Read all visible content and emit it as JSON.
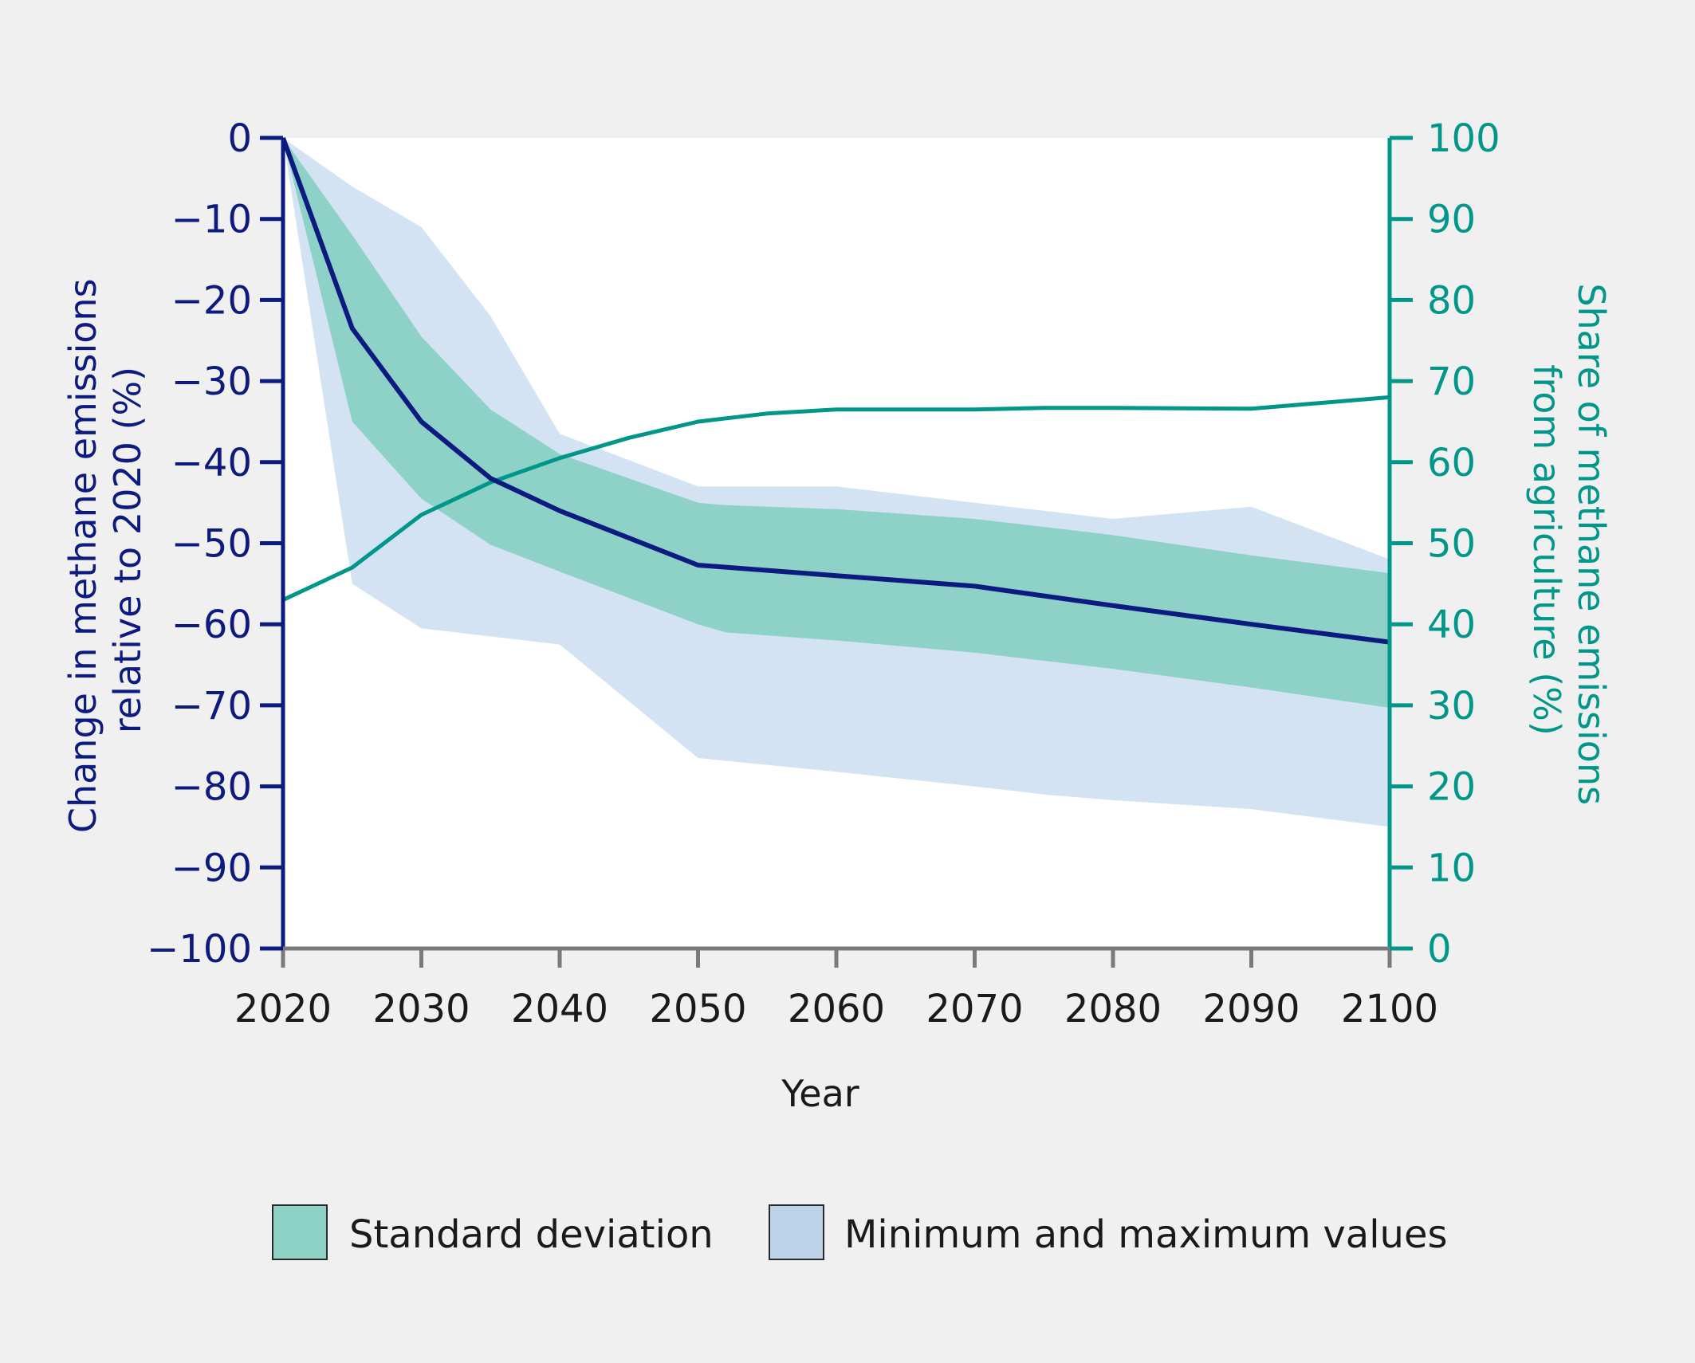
{
  "chart_data": {
    "type": "line",
    "xlabel": "Year",
    "ylabel_left": [
      "Change in methane emissions",
      "relative to 2020 (%)"
    ],
    "ylabel_right": [
      "Share of methane emissions",
      "from agriculture (%)"
    ],
    "xlim": [
      2020,
      2100
    ],
    "ylim_left": [
      -100,
      0
    ],
    "ylim_right": [
      0,
      100
    ],
    "x_ticks": [
      2020,
      2030,
      2040,
      2050,
      2060,
      2070,
      2080,
      2090,
      2100
    ],
    "y_left_ticks": [
      "0",
      "−10",
      "−20",
      "−30",
      "−40",
      "−50",
      "−60",
      "−70",
      "−80",
      "−90",
      "−100"
    ],
    "y_left_tick_values": [
      0,
      -10,
      -20,
      -30,
      -40,
      -50,
      -60,
      -70,
      -80,
      -90,
      -100
    ],
    "y_right_ticks": [
      "100",
      "90",
      "80",
      "70",
      "60",
      "50",
      "40",
      "30",
      "20",
      "10",
      "0"
    ],
    "y_right_tick_values": [
      100,
      90,
      80,
      70,
      60,
      50,
      40,
      30,
      20,
      10,
      0
    ],
    "colors": {
      "mean_line": "#0d1a80",
      "share_line": "#00968a",
      "std_band": "#8dd1c7",
      "minmax_band": "#d4e3f3",
      "left_axis": "#0d1a80",
      "right_axis": "#00968a",
      "bottom_axis": "#7a7a7a",
      "tick_text_x": "#1a1a1a"
    },
    "series": [
      {
        "name": "Mean change in methane emissions",
        "axis": "left",
        "x": [
          2020,
          2025,
          2030,
          2035,
          2040,
          2050,
          2060,
          2070,
          2080,
          2090,
          2100
        ],
        "values": [
          0,
          -23.5,
          -35,
          -42,
          -46,
          -52.7,
          -54,
          -55.3,
          -57.7,
          -60,
          -62.2
        ]
      },
      {
        "name": "Share of methane emissions from agriculture",
        "axis": "right",
        "x": [
          2020,
          2025,
          2030,
          2035,
          2040,
          2045,
          2050,
          2055,
          2060,
          2070,
          2075,
          2080,
          2090,
          2100
        ],
        "values": [
          43,
          47,
          53.5,
          57.5,
          60.5,
          63,
          65,
          66,
          66.5,
          66.5,
          66.7,
          66.7,
          66.6,
          68
        ]
      }
    ],
    "bands": [
      {
        "name": "Minimum and maximum values",
        "axis": "left",
        "x": [
          2020,
          2025,
          2030,
          2035,
          2040,
          2050,
          2060,
          2070,
          2075,
          2080,
          2090,
          2100
        ],
        "upper": [
          0,
          -6,
          -11,
          -22,
          -36.5,
          -43,
          -43,
          -45,
          -46,
          -47,
          -45.5,
          -52
        ],
        "lower": [
          0,
          -55,
          -60.5,
          -61.5,
          -62.5,
          -76.5,
          -78.2,
          -80,
          -81,
          -81.7,
          -82.8,
          -85
        ]
      },
      {
        "name": "Standard deviation",
        "axis": "left",
        "x": [
          2020,
          2025,
          2030,
          2035,
          2040,
          2050,
          2052,
          2060,
          2070,
          2080,
          2090,
          2100
        ],
        "upper": [
          0,
          -12,
          -24.5,
          -33.5,
          -39,
          -45,
          -45.3,
          -45.8,
          -47,
          -49,
          -51.5,
          -53.7
        ],
        "lower": [
          0,
          -35,
          -44.5,
          -50.2,
          -53.5,
          -60,
          -61,
          -62,
          -63.5,
          -65.5,
          -67.8,
          -70.3
        ]
      }
    ],
    "legend": [
      "Standard deviation",
      "Minimum and maximum values"
    ],
    "legend_position": "bottom-center",
    "grid": false
  }
}
